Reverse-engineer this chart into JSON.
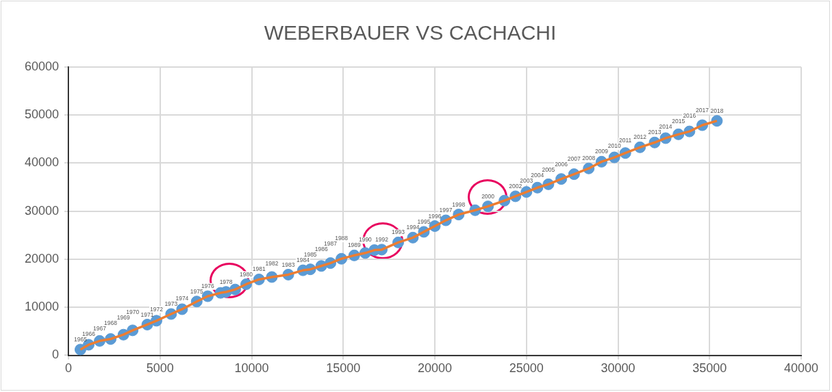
{
  "chart_data": {
    "type": "scatter",
    "title": "WEBERBAUER VS CACHACHI",
    "x": [
      650,
      1100,
      1700,
      2300,
      3000,
      3500,
      4300,
      4800,
      5600,
      6200,
      7000,
      7600,
      8300,
      8600,
      9100,
      9700,
      10400,
      11100,
      12000,
      12800,
      13200,
      13800,
      14300,
      14900,
      15600,
      16200,
      16700,
      17100,
      18000,
      18800,
      19400,
      20000,
      20600,
      21300,
      22200,
      22900,
      23800,
      24400,
      25000,
      25600,
      26200,
      26900,
      27600,
      28400,
      29100,
      29800,
      30400,
      31200,
      32000,
      32600,
      33300,
      33900,
      34600,
      35400
    ],
    "series": [
      {
        "type": "line",
        "color": "#ed7d31",
        "marker": "none",
        "values": [
          1200,
          2200,
          3000,
          3400,
          4300,
          5200,
          6400,
          7200,
          8600,
          9600,
          11200,
          12300,
          13000,
          13200,
          13700,
          14800,
          15800,
          16300,
          16800,
          17700,
          17900,
          18600,
          19200,
          20100,
          20800,
          21300,
          21900,
          22000,
          23500,
          24500,
          25700,
          26900,
          28100,
          29300,
          30200,
          31000,
          32200,
          33100,
          34000,
          34900,
          35600,
          36700,
          37700,
          38900,
          40300,
          41200,
          42100,
          43300,
          44300,
          45200,
          46000,
          46600,
          47900,
          48800
        ]
      },
      {
        "type": "scatter",
        "color": "#5b9bd5",
        "marker": "circle",
        "values": [
          1200,
          2200,
          3000,
          3400,
          4300,
          5200,
          6400,
          7200,
          8600,
          9600,
          11200,
          12300,
          13000,
          13200,
          13700,
          14800,
          15800,
          16300,
          16800,
          17700,
          17900,
          18600,
          19200,
          20100,
          20800,
          21300,
          21900,
          22000,
          23500,
          24500,
          25700,
          26900,
          28100,
          29300,
          30200,
          31000,
          32200,
          33100,
          34000,
          34900,
          35600,
          36700,
          37700,
          38900,
          40300,
          41200,
          42100,
          43300,
          44300,
          45200,
          46000,
          46600,
          47900,
          48800
        ]
      }
    ],
    "annotations": [
      {
        "text": "1965",
        "x": 650,
        "y": 1200
      },
      {
        "text": "1966",
        "x": 1100,
        "y": 2200
      },
      {
        "text": "1967",
        "x": 1700,
        "y": 3000
      },
      {
        "text": "1968",
        "x": 2300,
        "y": 3400
      },
      {
        "text": "1969",
        "x": 3000,
        "y": 4300
      },
      {
        "text": "1970",
        "x": 3500,
        "y": 5200
      },
      {
        "text": "1971",
        "x": 4300,
        "y": 6400
      },
      {
        "text": "1972",
        "x": 4800,
        "y": 7200
      },
      {
        "text": "1973",
        "x": 5600,
        "y": 8600
      },
      {
        "text": "1974",
        "x": 6200,
        "y": 9600
      },
      {
        "text": "1975",
        "x": 7000,
        "y": 11200
      },
      {
        "text": "1976",
        "x": 7600,
        "y": 12300
      },
      {
        "text": "1978",
        "x": 8600,
        "y": 13200
      },
      {
        "text": "1980",
        "x": 9700,
        "y": 14800
      },
      {
        "text": "1981",
        "x": 10400,
        "y": 15800
      },
      {
        "text": "1982",
        "x": 11100,
        "y": 16300
      },
      {
        "text": "1983",
        "x": 12000,
        "y": 16800
      },
      {
        "text": "1984",
        "x": 12800,
        "y": 17700
      },
      {
        "text": "1985",
        "x": 13200,
        "y": 17900
      },
      {
        "text": "1986",
        "x": 13800,
        "y": 18600
      },
      {
        "text": "1987",
        "x": 14300,
        "y": 19200
      },
      {
        "text": "1988",
        "x": 14900,
        "y": 20100
      },
      {
        "text": "1989",
        "x": 15600,
        "y": 20800
      },
      {
        "text": "1990",
        "x": 16200,
        "y": 21300
      },
      {
        "text": "1992",
        "x": 17100,
        "y": 22000
      },
      {
        "text": "1993",
        "x": 18000,
        "y": 23500
      },
      {
        "text": "1994",
        "x": 18800,
        "y": 24500
      },
      {
        "text": "1995",
        "x": 19400,
        "y": 25700
      },
      {
        "text": "1996",
        "x": 20000,
        "y": 26900
      },
      {
        "text": "1997",
        "x": 20600,
        "y": 28100
      },
      {
        "text": "1998",
        "x": 21300,
        "y": 29300
      },
      {
        "text": "2000",
        "x": 22900,
        "y": 31000
      },
      {
        "text": "2002",
        "x": 24400,
        "y": 33100
      },
      {
        "text": "2003",
        "x": 25000,
        "y": 34000
      },
      {
        "text": "2004",
        "x": 25600,
        "y": 34900
      },
      {
        "text": "2005",
        "x": 26200,
        "y": 35600
      },
      {
        "text": "2006",
        "x": 26900,
        "y": 36700
      },
      {
        "text": "2007",
        "x": 27600,
        "y": 37700
      },
      {
        "text": "2008",
        "x": 28400,
        "y": 38900
      },
      {
        "text": "2009",
        "x": 29100,
        "y": 40300
      },
      {
        "text": "2010",
        "x": 29800,
        "y": 41200
      },
      {
        "text": "2011",
        "x": 30400,
        "y": 42100
      },
      {
        "text": "2012",
        "x": 31200,
        "y": 43300
      },
      {
        "text": "2013",
        "x": 32000,
        "y": 44300
      },
      {
        "text": "2014",
        "x": 32600,
        "y": 45200
      },
      {
        "text": "2015",
        "x": 33300,
        "y": 46000
      },
      {
        "text": "2016",
        "x": 33900,
        "y": 46600
      },
      {
        "text": "2017",
        "x": 34600,
        "y": 47900
      },
      {
        "text": "2018",
        "x": 35400,
        "y": 48800
      }
    ],
    "xlim": [
      0,
      40000
    ],
    "xticks": [
      0,
      5000,
      10000,
      15000,
      20000,
      25000,
      30000,
      35000,
      40000
    ],
    "ylim": [
      0,
      60000
    ],
    "yticks": [
      0,
      10000,
      20000,
      30000,
      40000,
      50000,
      60000
    ],
    "grid": true,
    "legend": false
  }
}
